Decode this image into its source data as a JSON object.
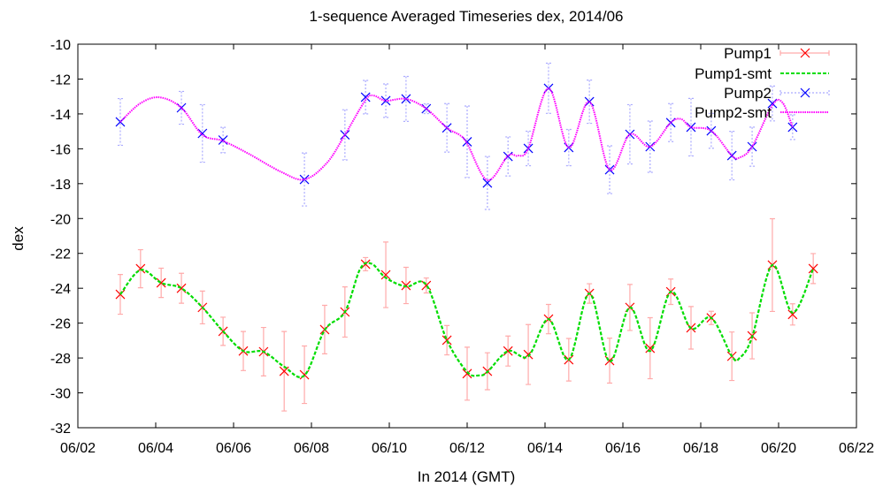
{
  "chart_data": {
    "type": "line",
    "title": "1-sequence Averaged Timeseries dex, 2014/06",
    "xlabel": "In 2014 (GMT)",
    "ylabel": "dex",
    "xlim": [
      2,
      22
    ],
    "ylim": [
      -32,
      -10
    ],
    "x_unit": "day of June 2014",
    "xticks": [
      2,
      4,
      6,
      8,
      10,
      12,
      14,
      16,
      18,
      20,
      22
    ],
    "xtick_labels": [
      "06/02",
      "06/04",
      "06/06",
      "06/08",
      "06/10",
      "06/12",
      "06/14",
      "06/16",
      "06/18",
      "06/20",
      "06/22"
    ],
    "yticks": [
      -32,
      -30,
      -28,
      -26,
      -24,
      -22,
      -20,
      -18,
      -16,
      -14,
      -12,
      -10
    ],
    "ytick_labels": [
      "-32",
      "-30",
      "-28",
      "-26",
      "-24",
      "-22",
      "-20",
      "-18",
      "-16",
      "-14",
      "-12",
      "-10"
    ],
    "grid": false,
    "legend_position": "top-right",
    "series": [
      {
        "name": "Pump1",
        "style": "points-errorbars",
        "color": "#ff0000",
        "err_color": "#ffaaaa",
        "x": [
          3.09,
          3.61,
          4.14,
          4.66,
          5.2,
          5.73,
          6.25,
          6.77,
          7.3,
          7.82,
          8.34,
          8.86,
          9.39,
          9.91,
          10.43,
          10.95,
          11.48,
          12.0,
          12.52,
          13.05,
          13.57,
          14.09,
          14.61,
          15.14,
          15.66,
          16.18,
          16.7,
          17.23,
          17.75,
          18.27,
          18.8,
          19.32,
          19.84,
          20.36,
          20.89
        ],
        "y": [
          -24.35,
          -22.88,
          -23.69,
          -24.0,
          -25.1,
          -26.47,
          -27.6,
          -27.64,
          -28.76,
          -28.96,
          -26.37,
          -25.36,
          -22.62,
          -23.23,
          -23.84,
          -23.84,
          -26.98,
          -28.9,
          -28.76,
          -27.6,
          -27.8,
          -25.77,
          -28.1,
          -24.3,
          -28.15,
          -25.1,
          -27.44,
          -24.2,
          -26.27,
          -25.7,
          -27.9,
          -26.73,
          -22.67,
          -25.5,
          -22.87
        ],
        "err": [
          1.14,
          1.09,
          0.84,
          0.86,
          0.94,
          0.81,
          1.12,
          1.39,
          2.28,
          1.65,
          1.39,
          1.44,
          0.38,
          1.88,
          1.04,
          0.43,
          0.84,
          1.52,
          1.06,
          0.86,
          1.72,
          0.84,
          1.22,
          0.56,
          1.29,
          1.32,
          1.75,
          0.73,
          1.22,
          0.38,
          1.39,
          1.32,
          2.66,
          0.61,
          0.86
        ]
      },
      {
        "name": "Pump1-smt",
        "style": "dashed-line",
        "color": "#00dd00",
        "x": [
          3.09,
          3.61,
          4.14,
          4.66,
          5.2,
          5.73,
          6.25,
          6.77,
          7.3,
          7.82,
          8.34,
          8.86,
          9.25,
          9.55,
          9.91,
          10.43,
          10.95,
          11.48,
          12.0,
          12.3,
          12.52,
          13.05,
          13.57,
          14.09,
          14.61,
          15.14,
          15.66,
          16.18,
          16.7,
          17.23,
          17.75,
          18.27,
          18.8,
          19.0,
          19.32,
          19.84,
          20.36,
          20.89
        ],
        "y": [
          -24.35,
          -22.95,
          -23.69,
          -24.0,
          -25.1,
          -26.47,
          -27.6,
          -27.64,
          -28.5,
          -29.0,
          -26.4,
          -25.36,
          -22.9,
          -22.6,
          -23.4,
          -23.9,
          -23.8,
          -26.98,
          -28.8,
          -29.0,
          -28.8,
          -27.6,
          -27.9,
          -25.77,
          -28.1,
          -24.3,
          -28.2,
          -25.1,
          -27.6,
          -24.2,
          -26.3,
          -25.7,
          -27.9,
          -28.0,
          -26.8,
          -22.67,
          -25.4,
          -22.87
        ]
      },
      {
        "name": "Pump2",
        "style": "points-errorbars",
        "color": "#0000ff",
        "err_color": "#aaaaff",
        "x": [
          3.09,
          4.66,
          5.2,
          5.73,
          7.82,
          8.86,
          9.39,
          9.91,
          10.43,
          10.95,
          11.48,
          12.0,
          12.52,
          13.05,
          13.57,
          14.09,
          14.61,
          15.14,
          15.66,
          16.18,
          16.7,
          17.23,
          17.75,
          18.27,
          18.8,
          19.32,
          19.84,
          20.36
        ],
        "y": [
          -14.46,
          -13.65,
          -15.12,
          -15.5,
          -17.76,
          -15.2,
          -13.04,
          -13.24,
          -13.14,
          -13.7,
          -14.8,
          -15.6,
          -17.96,
          -16.44,
          -15.98,
          -12.53,
          -15.93,
          -13.3,
          -17.2,
          -15.17,
          -15.88,
          -14.5,
          -14.76,
          -14.97,
          -16.39,
          -15.88,
          -13.4,
          -14.76
        ],
        "err": [
          1.34,
          0.94,
          1.65,
          0.73,
          1.52,
          1.44,
          0.96,
          0.96,
          1.29,
          0.28,
          1.39,
          2.05,
          1.52,
          1.12,
          0.99,
          1.44,
          1.04,
          1.24,
          1.37,
          1.7,
          1.47,
          1.09,
          1.65,
          1.0,
          1.39,
          1.12,
          1.0,
          0.71
        ]
      },
      {
        "name": "Pump2-smt",
        "style": "dotted-line",
        "color": "#ff00ff",
        "x": [
          3.09,
          3.6,
          4.1,
          4.66,
          5.2,
          5.73,
          6.4,
          7.2,
          7.82,
          8.4,
          8.86,
          9.39,
          9.6,
          9.91,
          10.43,
          10.95,
          11.48,
          11.8,
          12.0,
          12.52,
          13.05,
          13.3,
          13.57,
          14.09,
          14.61,
          15.14,
          15.66,
          16.18,
          16.7,
          17.23,
          17.5,
          17.75,
          18.27,
          18.8,
          19.0,
          19.32,
          19.84,
          20.1,
          20.36
        ],
        "y": [
          -14.46,
          -13.4,
          -13.05,
          -13.65,
          -15.2,
          -15.55,
          -16.3,
          -17.3,
          -17.76,
          -16.8,
          -15.2,
          -13.2,
          -12.95,
          -13.24,
          -13.14,
          -13.7,
          -14.8,
          -15.2,
          -15.7,
          -17.8,
          -16.4,
          -16.4,
          -15.98,
          -12.53,
          -15.93,
          -13.3,
          -17.2,
          -15.17,
          -15.88,
          -14.5,
          -14.3,
          -14.76,
          -14.97,
          -16.39,
          -16.5,
          -15.88,
          -13.5,
          -13.35,
          -14.76
        ]
      }
    ]
  }
}
